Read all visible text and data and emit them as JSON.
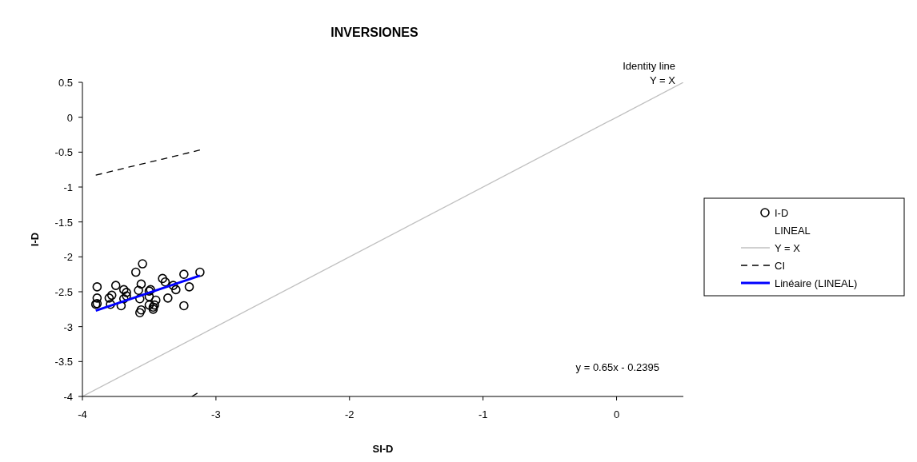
{
  "chart_data": {
    "type": "scatter",
    "title": "INVERSIONES",
    "xlabel": "SI-D",
    "ylabel": "I-D",
    "xlim": [
      -4,
      0.5
    ],
    "xticks": [
      -4,
      -3,
      -2,
      -1,
      0
    ],
    "ylim": [
      -4,
      0.5
    ],
    "yticks": [
      -4,
      -3.5,
      -3,
      -2.5,
      -2,
      -1.5,
      -1,
      -0.5,
      0,
      0.5
    ],
    "grid": false,
    "legend": "right",
    "annotations": [
      "Identity line",
      "Y = X",
      "y = 0.65x - 0.2395"
    ],
    "series": [
      {
        "name": "I-D",
        "type": "scatter",
        "color": "#000000",
        "marker": "circle",
        "x": [
          -3.89,
          -3.89,
          -3.9,
          -3.89,
          -3.8,
          -3.78,
          -3.79,
          -3.75,
          -3.71,
          -3.69,
          -3.67,
          -3.69,
          -3.67,
          -3.6,
          -3.58,
          -3.56,
          -3.57,
          -3.56,
          -3.57,
          -3.5,
          -3.49,
          -3.5,
          -3.5,
          -3.45,
          -3.46,
          -3.47,
          -3.47,
          -3.4,
          -3.38,
          -3.32,
          -3.3,
          -3.36,
          -3.24,
          -3.2,
          -3.24,
          -3.12,
          -3.55
        ],
        "values": [
          -2.43,
          -2.59,
          -2.68,
          -2.67,
          -2.59,
          -2.55,
          -2.68,
          -2.41,
          -2.7,
          -2.47,
          -2.51,
          -2.6,
          -2.56,
          -2.22,
          -2.48,
          -2.39,
          -2.6,
          -2.76,
          -2.8,
          -2.49,
          -2.47,
          -2.57,
          -2.69,
          -2.62,
          -2.69,
          -2.75,
          -2.72,
          -2.31,
          -2.36,
          -2.41,
          -2.47,
          -2.59,
          -2.25,
          -2.43,
          -2.7,
          -2.22,
          -2.1
        ]
      },
      {
        "name": "LINEAL",
        "type": "scatter",
        "marker": "none"
      },
      {
        "name": "Y = X",
        "type": "line",
        "color": "#c0c0c0",
        "line_style": "solid",
        "x": [
          -4,
          0.5
        ],
        "values": [
          -4,
          0.5
        ]
      },
      {
        "name": "CI",
        "type": "line",
        "color": "#000000",
        "line_style": "dashed",
        "x": [
          -3.9,
          -3.6,
          -3.4,
          -3.12
        ],
        "values": [
          -0.83,
          -0.69,
          -0.6,
          -0.47
        ]
      },
      {
        "type": "line",
        "color": "#000000",
        "line_style": "dashed",
        "x": [
          -3.18,
          -3.12
        ],
        "values": [
          -4,
          -3.93
        ]
      },
      {
        "name": "Linéaire (LINEAL)",
        "type": "line",
        "color": "#0000ff",
        "line_style": "solid",
        "x": [
          -3.9,
          -3.12
        ],
        "values": [
          -2.77,
          -2.27
        ]
      }
    ]
  }
}
